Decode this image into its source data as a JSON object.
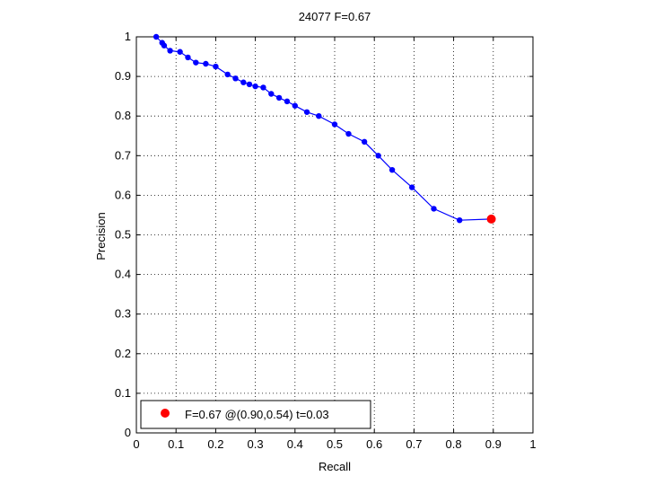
{
  "chart_data": {
    "type": "line",
    "title": "24077 F=0.67",
    "xlabel": "Recall",
    "ylabel": "Precision",
    "xlim": [
      0,
      1
    ],
    "ylim": [
      0,
      1
    ],
    "xticks": [
      "0",
      "0.1",
      "0.2",
      "0.3",
      "0.4",
      "0.5",
      "0.6",
      "0.7",
      "0.8",
      "0.9",
      "1"
    ],
    "yticks": [
      "0",
      "0.1",
      "0.2",
      "0.3",
      "0.4",
      "0.5",
      "0.6",
      "0.7",
      "0.8",
      "0.9",
      "1"
    ],
    "grid": true,
    "legend_position": "bottom-left",
    "colors": {
      "curve": "#0000ff",
      "best_point": "#ff0000",
      "grid": "#000000"
    },
    "series": [
      {
        "x": [
          0.05,
          0.065,
          0.07,
          0.085,
          0.11,
          0.13,
          0.15,
          0.175,
          0.2,
          0.23,
          0.25,
          0.27,
          0.285,
          0.3,
          0.32,
          0.34,
          0.36,
          0.38,
          0.4,
          0.43,
          0.46,
          0.5,
          0.535,
          0.575,
          0.61,
          0.645,
          0.695,
          0.75,
          0.815,
          0.895
        ],
        "y": [
          1.0,
          0.985,
          0.978,
          0.965,
          0.962,
          0.948,
          0.935,
          0.932,
          0.925,
          0.905,
          0.895,
          0.885,
          0.88,
          0.875,
          0.872,
          0.856,
          0.846,
          0.837,
          0.826,
          0.81,
          0.8,
          0.779,
          0.755,
          0.735,
          0.7,
          0.664,
          0.62,
          0.566,
          0.537,
          0.54
        ]
      }
    ],
    "best_point": {
      "x": 0.895,
      "y": 0.54
    },
    "legend": {
      "label": "F=0.67 @(0.90,0.54) t=0.03"
    }
  }
}
